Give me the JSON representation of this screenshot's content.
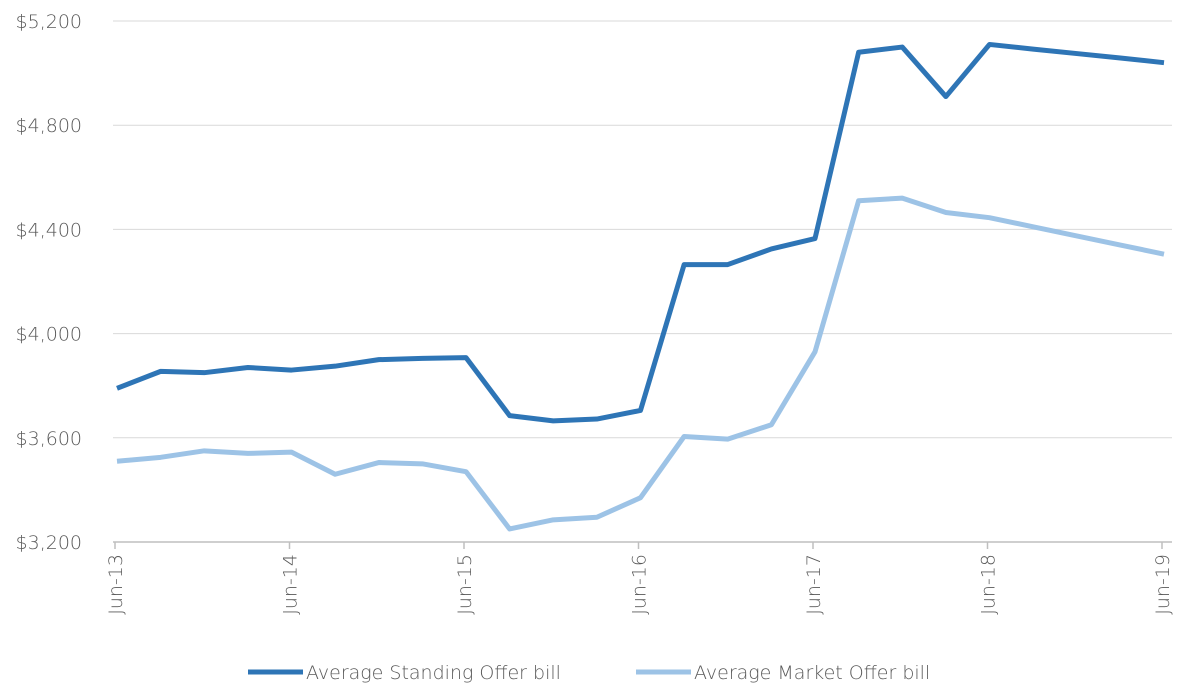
{
  "chart_data": {
    "type": "line",
    "categories": [
      "Jun-13",
      null,
      null,
      null,
      "Jun-14",
      null,
      null,
      null,
      "Jun-15",
      null,
      null,
      null,
      "Jun-16",
      null,
      null,
      null,
      "Jun-17",
      null,
      null,
      null,
      "Jun-18",
      null,
      null,
      null,
      "Jun-19"
    ],
    "series": [
      {
        "name": "Average Standing Offer bill",
        "color": "#2e75b6",
        "values": [
          3790,
          3855,
          3850,
          3870,
          3860,
          3875,
          3900,
          3905,
          3908,
          3685,
          3665,
          3672,
          3705,
          4265,
          4265,
          4325,
          4365,
          5080,
          5100,
          4910,
          5110,
          5092,
          5075,
          5058,
          5040
        ]
      },
      {
        "name": "Average Market Offer bill",
        "color": "#9dc3e6",
        "values": [
          3510,
          3525,
          3550,
          3540,
          3545,
          3460,
          3505,
          3500,
          3470,
          3250,
          3285,
          3295,
          3370,
          3605,
          3595,
          3650,
          3930,
          4510,
          4520,
          4465,
          4445,
          4410,
          4375,
          4340,
          4305
        ]
      }
    ],
    "ylim": [
      3200,
      5200
    ],
    "yticks": [
      {
        "value": 3200,
        "label": "$3,200"
      },
      {
        "value": 3600,
        "label": "$3,600"
      },
      {
        "value": 4000,
        "label": "$4,000"
      },
      {
        "value": 4400,
        "label": "$4,400"
      },
      {
        "value": 4800,
        "label": "$4,800"
      },
      {
        "value": 5200,
        "label": "$5,200"
      }
    ],
    "grid": true,
    "legend": "bottom"
  }
}
